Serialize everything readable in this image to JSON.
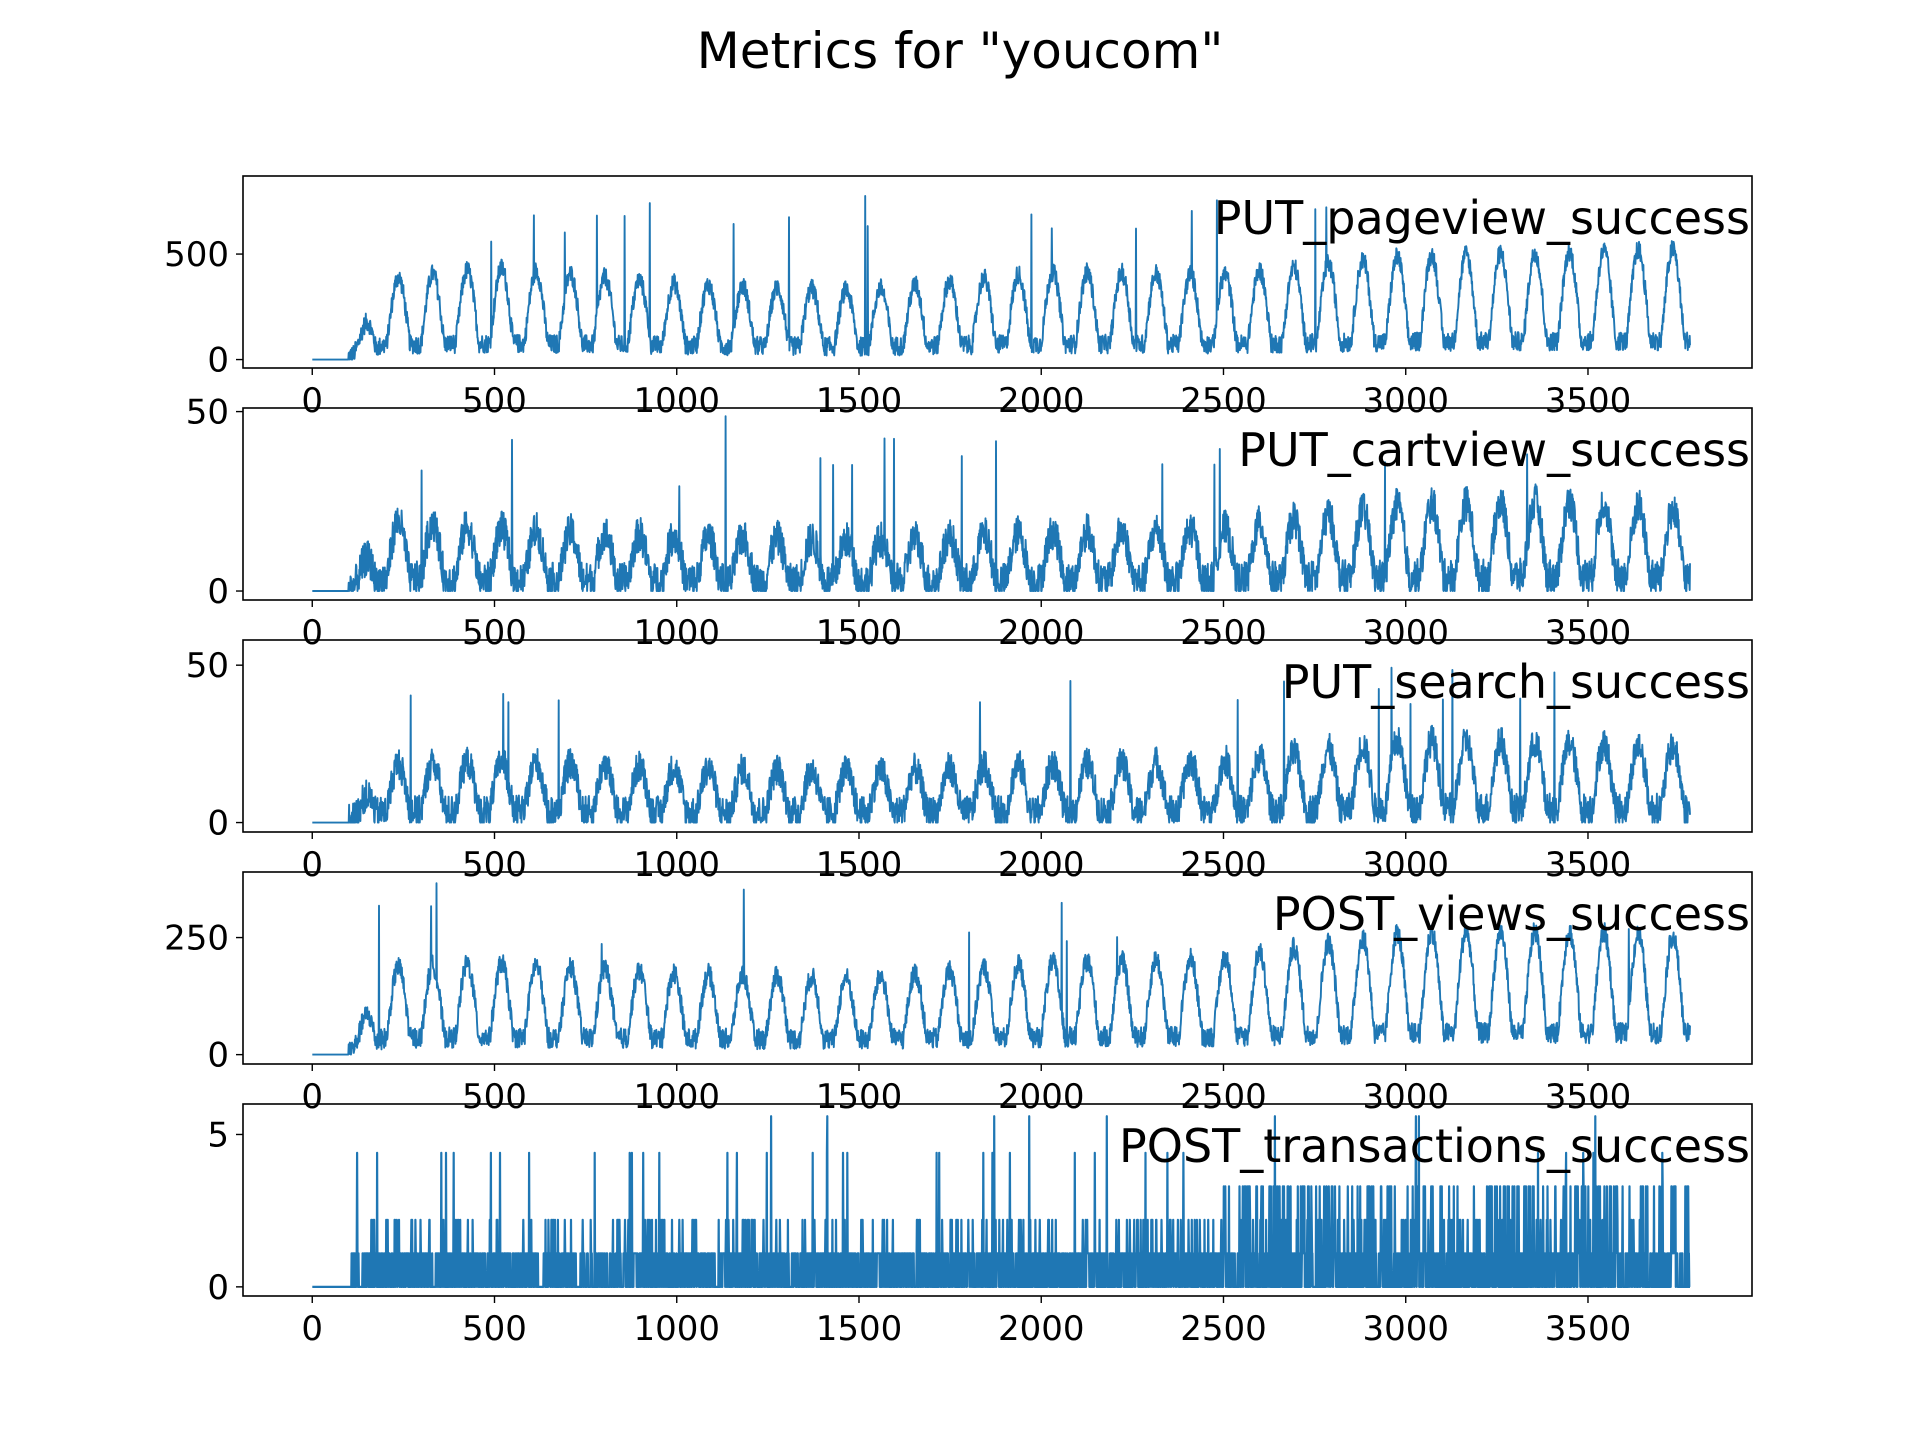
{
  "figure": {
    "title": "Metrics for \"youcom\"",
    "line_color": "#1f77b4"
  },
  "chart_data": [
    {
      "type": "line",
      "label": "PUT_pageview_success",
      "xlim": [
        -190,
        3950
      ],
      "ylim": [
        -40,
        870
      ],
      "xticks": [
        0,
        500,
        1000,
        1500,
        2000,
        2500,
        3000,
        3500
      ],
      "yticks": [
        0,
        500
      ],
      "series": [
        {
          "shape": "daily",
          "baseline": 50,
          "amp": 290,
          "noise": 45,
          "spikes": [
            650,
            690,
            640,
            680,
            810,
            770,
            760
          ],
          "x": [
            0,
            100,
            200,
            500,
            1000,
            1500,
            2000,
            2500,
            3000,
            3500,
            3780
          ],
          "y": [
            0,
            0,
            350,
            400,
            330,
            300,
            380,
            370,
            450,
            470,
            480
          ]
        }
      ]
    },
    {
      "type": "line",
      "label": "PUT_cartview_success",
      "xlim": [
        -190,
        3950
      ],
      "ylim": [
        -2.5,
        51
      ],
      "xticks": [
        0,
        500,
        1000,
        1500,
        2000,
        2500,
        3000,
        3500
      ],
      "yticks": [
        0,
        50
      ],
      "series": [
        {
          "shape": "daily",
          "baseline": 2,
          "amp": 16,
          "noise": 5,
          "spikes": [
            44,
            41,
            42,
            36,
            33,
            40,
            49,
            50
          ],
          "x": [
            0,
            100,
            200,
            500,
            1000,
            1500,
            2000,
            2500,
            3000,
            3500,
            3780
          ],
          "y": [
            0,
            0,
            18,
            16,
            14,
            13,
            15,
            16,
            22,
            23,
            20
          ]
        }
      ]
    },
    {
      "type": "line",
      "label": "PUT_search_success",
      "xlim": [
        -190,
        3950
      ],
      "ylim": [
        -3,
        58
      ],
      "xticks": [
        0,
        500,
        1000,
        1500,
        2000,
        2500,
        3000,
        3500
      ],
      "yticks": [
        0,
        50
      ],
      "series": [
        {
          "shape": "daily",
          "baseline": 3,
          "amp": 14,
          "noise": 5,
          "spikes": [
            47,
            44,
            41,
            44,
            56,
            46
          ],
          "x": [
            0,
            100,
            200,
            500,
            1000,
            1500,
            2000,
            2500,
            3000,
            3500,
            3780
          ],
          "y": [
            0,
            0,
            17,
            18,
            16,
            15,
            17,
            18,
            24,
            23,
            22
          ]
        }
      ]
    },
    {
      "type": "line",
      "label": "POST_views_success",
      "xlim": [
        -190,
        3950
      ],
      "ylim": [
        -20,
        390
      ],
      "xticks": [
        0,
        500,
        1000,
        1500,
        2000,
        2500,
        3000,
        3500
      ],
      "yticks": [
        0,
        250
      ],
      "series": [
        {
          "shape": "daily",
          "baseline": 30,
          "amp": 130,
          "noise": 22,
          "spikes": [
            280,
            270,
            265,
            260,
            360,
            370,
            365
          ],
          "x": [
            0,
            100,
            200,
            500,
            1000,
            1500,
            2000,
            2500,
            3000,
            3500,
            3780
          ],
          "y": [
            0,
            0,
            170,
            180,
            160,
            150,
            180,
            190,
            240,
            240,
            230
          ]
        }
      ]
    },
    {
      "type": "line",
      "label": "POST_transactions_success",
      "xlim": [
        -190,
        3950
      ],
      "ylim": [
        -0.3,
        6
      ],
      "xticks": [
        0,
        500,
        1000,
        1500,
        2000,
        2500,
        3000,
        3500
      ],
      "yticks": [
        0,
        5
      ],
      "series": [
        {
          "shape": "counts",
          "baseline": 0,
          "amp": 1,
          "noise": 0,
          "spikes": [
            4.4,
            4.4,
            4.4,
            4.4,
            4.4,
            4.4,
            5.6,
            5.6,
            4.4
          ],
          "x": [
            0,
            100,
            200,
            500,
            1000,
            1500,
            2000,
            2500,
            3000,
            3500,
            3780
          ],
          "y": [
            0,
            0,
            1.1,
            1.2,
            1.1,
            1.0,
            1.2,
            1.3,
            1.6,
            1.7,
            1.5
          ]
        }
      ]
    }
  ]
}
